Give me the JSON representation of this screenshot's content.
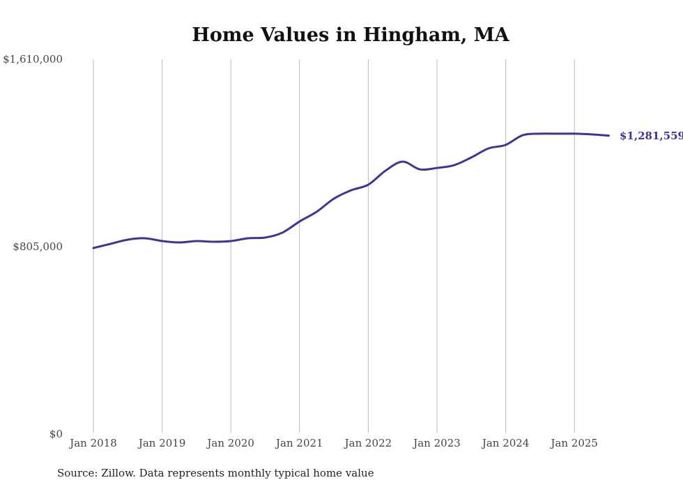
{
  "chart_data": {
    "type": "line",
    "title": "Home Values in Hingham, MA",
    "xlabel": "",
    "ylabel": "",
    "ylim": [
      0,
      1610000
    ],
    "xlim": [
      2018.0,
      2025.5
    ],
    "y_ticks": [
      {
        "value": 0,
        "label": "$0"
      },
      {
        "value": 805000,
        "label": "$805,000"
      },
      {
        "value": 1610000,
        "label": "$1,610,000"
      }
    ],
    "x_ticks": [
      {
        "value": 2018,
        "label": "Jan 2018"
      },
      {
        "value": 2019,
        "label": "Jan 2019"
      },
      {
        "value": 2020,
        "label": "Jan 2020"
      },
      {
        "value": 2021,
        "label": "Jan 2021"
      },
      {
        "value": 2022,
        "label": "Jan 2022"
      },
      {
        "value": 2023,
        "label": "Jan 2023"
      },
      {
        "value": 2024,
        "label": "Jan 2024"
      },
      {
        "value": 2025,
        "label": "Jan 2025"
      }
    ],
    "grid": "vertical",
    "series": [
      {
        "name": "Typical home value",
        "color": "#3b3597",
        "x": [
          2018.0,
          2018.25,
          2018.5,
          2018.75,
          2019.0,
          2019.25,
          2019.5,
          2019.75,
          2020.0,
          2020.25,
          2020.5,
          2020.75,
          2021.0,
          2021.25,
          2021.5,
          2021.75,
          2022.0,
          2022.25,
          2022.5,
          2022.75,
          2023.0,
          2023.25,
          2023.5,
          2023.75,
          2024.0,
          2024.25,
          2024.5,
          2024.75,
          2025.0,
          2025.25,
          2025.5
        ],
        "values": [
          799000,
          817000,
          835000,
          841000,
          829000,
          823000,
          829000,
          826000,
          829000,
          841000,
          844000,
          865000,
          913000,
          955000,
          1011000,
          1047000,
          1071000,
          1131000,
          1170000,
          1137000,
          1143000,
          1155000,
          1188000,
          1227000,
          1242000,
          1284000,
          1290000,
          1290000,
          1290000,
          1287000,
          1281559
        ]
      }
    ],
    "end_label": "$1,281,559",
    "source": "Source: Zillow. Data represents monthly typical home value"
  }
}
